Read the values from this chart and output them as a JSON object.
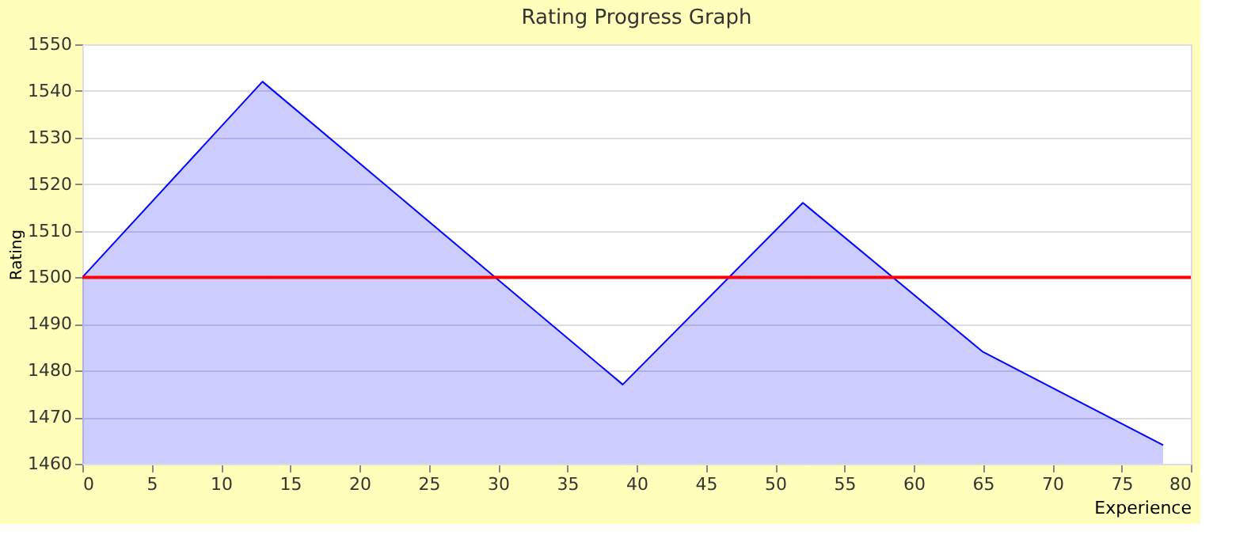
{
  "chart_data": {
    "type": "area",
    "title": "Rating Progress Graph",
    "xlabel": "Experience",
    "ylabel": "Rating",
    "x": [
      0,
      13,
      39,
      52,
      65,
      78
    ],
    "series": [
      {
        "color": "#0000ff",
        "values": [
          1500,
          1542,
          1477,
          1516,
          1484,
          1464
        ]
      }
    ],
    "xlim": [
      0,
      80
    ],
    "xticks": [
      0,
      5,
      10,
      15,
      20,
      25,
      30,
      35,
      40,
      45,
      50,
      55,
      60,
      65,
      70,
      75,
      80
    ],
    "ylim": [
      1460,
      1550
    ],
    "yticks": [
      1460,
      1470,
      1480,
      1490,
      1500,
      1510,
      1520,
      1530,
      1540,
      1550
    ],
    "ref_lines": [
      {
        "axis": "y",
        "value": 1500,
        "color": "#ff0000"
      }
    ],
    "grid": "y"
  }
}
